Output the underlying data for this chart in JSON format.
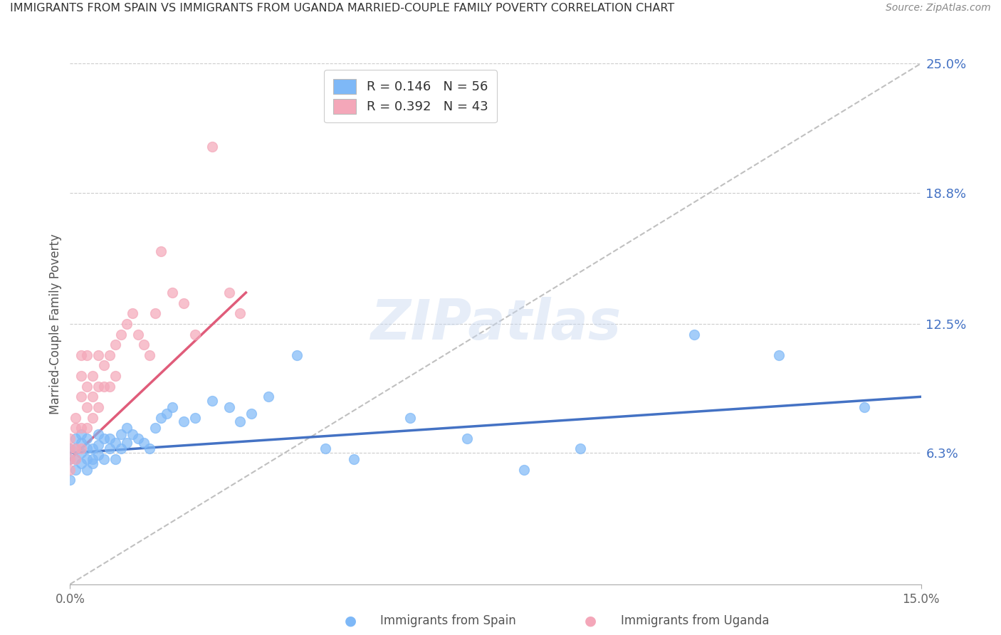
{
  "title": "IMMIGRANTS FROM SPAIN VS IMMIGRANTS FROM UGANDA MARRIED-COUPLE FAMILY POVERTY CORRELATION CHART",
  "source": "Source: ZipAtlas.com",
  "xlabel_bottom": "Immigrants from Spain",
  "xlabel_bottom2": "Immigrants from Uganda",
  "ylabel": "Married-Couple Family Poverty",
  "xlim": [
    0.0,
    0.15
  ],
  "ylim": [
    0.0,
    0.25
  ],
  "xtick_labels": [
    "0.0%",
    "15.0%"
  ],
  "ytick_labels_right": [
    "25.0%",
    "18.8%",
    "12.5%",
    "6.3%"
  ],
  "ytick_values_right": [
    0.25,
    0.188,
    0.125,
    0.063
  ],
  "legend_r1": "R = 0.146",
  "legend_n1": "N = 56",
  "legend_r2": "R = 0.392",
  "legend_n2": "N = 43",
  "color_spain": "#7eb8f7",
  "color_uganda": "#f4a7b9",
  "color_spain_line": "#4472c4",
  "color_uganda_line": "#e05c7a",
  "color_diagonal": "#c0c0c0",
  "watermark": "ZIPatlas",
  "spain_scatter_x": [
    0.0,
    0.0,
    0.0,
    0.001,
    0.001,
    0.001,
    0.001,
    0.002,
    0.002,
    0.002,
    0.002,
    0.003,
    0.003,
    0.003,
    0.003,
    0.004,
    0.004,
    0.004,
    0.005,
    0.005,
    0.005,
    0.006,
    0.006,
    0.007,
    0.007,
    0.008,
    0.008,
    0.009,
    0.009,
    0.01,
    0.01,
    0.011,
    0.012,
    0.013,
    0.014,
    0.015,
    0.016,
    0.017,
    0.018,
    0.02,
    0.022,
    0.025,
    0.028,
    0.03,
    0.032,
    0.035,
    0.04,
    0.045,
    0.05,
    0.06,
    0.07,
    0.08,
    0.09,
    0.11,
    0.125,
    0.14
  ],
  "spain_scatter_y": [
    0.05,
    0.06,
    0.065,
    0.055,
    0.06,
    0.065,
    0.07,
    0.058,
    0.063,
    0.068,
    0.072,
    0.055,
    0.06,
    0.065,
    0.07,
    0.06,
    0.065,
    0.058,
    0.062,
    0.067,
    0.072,
    0.06,
    0.07,
    0.065,
    0.07,
    0.06,
    0.068,
    0.065,
    0.072,
    0.068,
    0.075,
    0.072,
    0.07,
    0.068,
    0.065,
    0.075,
    0.08,
    0.082,
    0.085,
    0.078,
    0.08,
    0.088,
    0.085,
    0.078,
    0.082,
    0.09,
    0.11,
    0.065,
    0.06,
    0.08,
    0.07,
    0.055,
    0.065,
    0.12,
    0.11,
    0.085
  ],
  "uganda_scatter_x": [
    0.0,
    0.0,
    0.0,
    0.0,
    0.001,
    0.001,
    0.001,
    0.001,
    0.002,
    0.002,
    0.002,
    0.002,
    0.002,
    0.003,
    0.003,
    0.003,
    0.003,
    0.004,
    0.004,
    0.004,
    0.005,
    0.005,
    0.005,
    0.006,
    0.006,
    0.007,
    0.007,
    0.008,
    0.008,
    0.009,
    0.01,
    0.011,
    0.012,
    0.013,
    0.014,
    0.015,
    0.016,
    0.018,
    0.02,
    0.022,
    0.025,
    0.028,
    0.03
  ],
  "uganda_scatter_y": [
    0.055,
    0.06,
    0.065,
    0.07,
    0.06,
    0.065,
    0.075,
    0.08,
    0.065,
    0.075,
    0.09,
    0.1,
    0.11,
    0.075,
    0.085,
    0.095,
    0.11,
    0.08,
    0.09,
    0.1,
    0.085,
    0.095,
    0.11,
    0.095,
    0.105,
    0.095,
    0.11,
    0.1,
    0.115,
    0.12,
    0.125,
    0.13,
    0.12,
    0.115,
    0.11,
    0.13,
    0.16,
    0.14,
    0.135,
    0.12,
    0.21,
    0.14,
    0.13
  ],
  "spain_line_x0": 0.0,
  "spain_line_x1": 0.15,
  "spain_line_y0": 0.063,
  "spain_line_y1": 0.09,
  "uganda_line_x0": 0.0,
  "uganda_line_x1": 0.031,
  "uganda_line_y0": 0.06,
  "uganda_line_y1": 0.14
}
